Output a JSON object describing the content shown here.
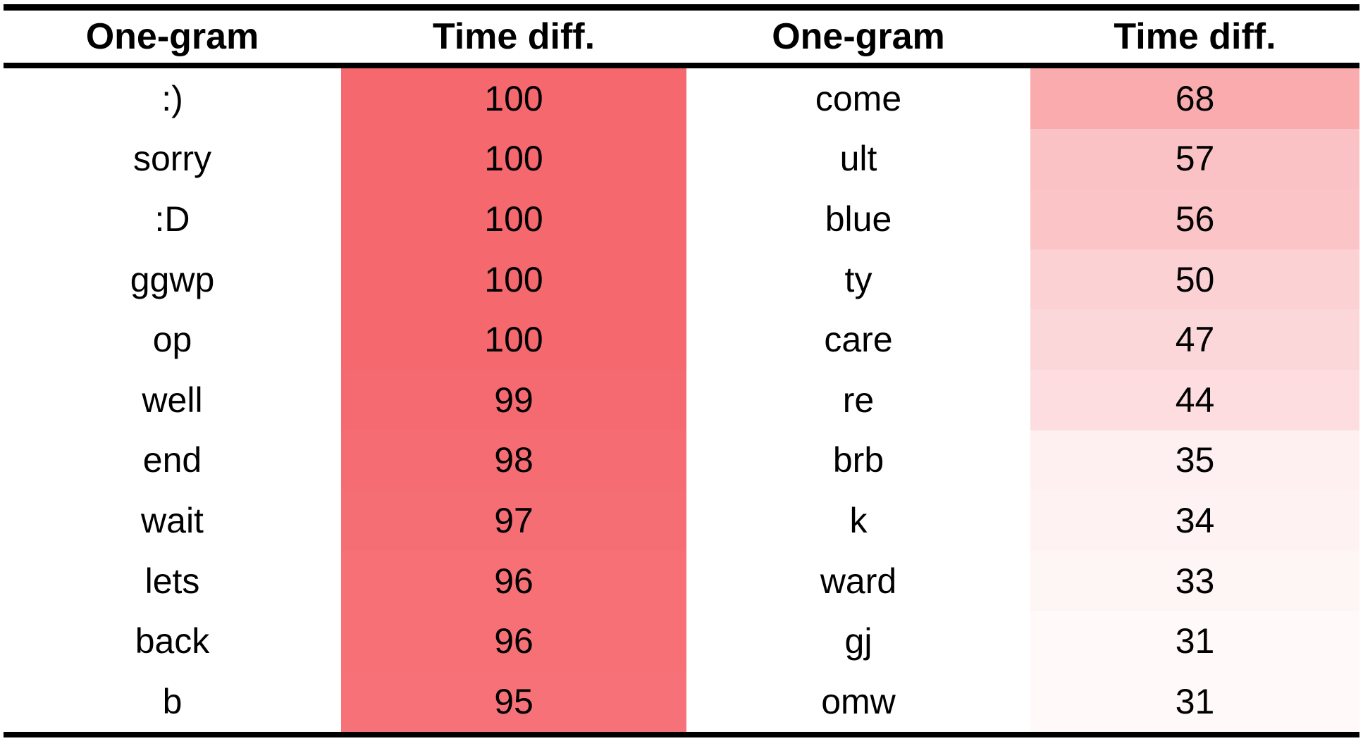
{
  "table": {
    "headers": [
      "One-gram",
      "Time diff.",
      "One-gram",
      "Time diff."
    ],
    "rows": [
      {
        "left_gram": ":)",
        "left_value": 100,
        "right_gram": "come",
        "right_value": 68
      },
      {
        "left_gram": "sorry",
        "left_value": 100,
        "right_gram": "ult",
        "right_value": 57
      },
      {
        "left_gram": ":D",
        "left_value": 100,
        "right_gram": "blue",
        "right_value": 56
      },
      {
        "left_gram": "ggwp",
        "left_value": 100,
        "right_gram": "ty",
        "right_value": 50
      },
      {
        "left_gram": "op",
        "left_value": 100,
        "right_gram": "care",
        "right_value": 47
      },
      {
        "left_gram": "well",
        "left_value": 99,
        "right_gram": "re",
        "right_value": 44
      },
      {
        "left_gram": "end",
        "left_value": 98,
        "right_gram": "brb",
        "right_value": 35
      },
      {
        "left_gram": "wait",
        "left_value": 97,
        "right_gram": "k",
        "right_value": 34
      },
      {
        "left_gram": "lets",
        "left_value": 96,
        "right_gram": "ward",
        "right_value": 33
      },
      {
        "left_gram": "back",
        "left_value": 96,
        "right_gram": "gj",
        "right_value": 31
      },
      {
        "left_gram": "b",
        "left_value": 95,
        "right_gram": "omw",
        "right_value": 31
      }
    ],
    "heatmap": {
      "base_color": "#F5686E",
      "min_value": 28,
      "max_value": 100,
      "scale": "white-to-red"
    }
  },
  "chart_data": {
    "type": "table",
    "columns": [
      "One-gram",
      "Time diff.",
      "One-gram",
      "Time diff."
    ],
    "series": [
      {
        "name": "left-columns",
        "categories": [
          ":)",
          "sorry",
          ":D",
          "ggwp",
          "op",
          "well",
          "end",
          "wait",
          "lets",
          "back",
          "b"
        ],
        "values": [
          100,
          100,
          100,
          100,
          100,
          99,
          98,
          97,
          96,
          96,
          95
        ]
      },
      {
        "name": "right-columns",
        "categories": [
          "come",
          "ult",
          "blue",
          "ty",
          "care",
          "re",
          "brb",
          "k",
          "ward",
          "gj",
          "omw"
        ],
        "values": [
          68,
          57,
          56,
          50,
          47,
          44,
          35,
          34,
          33,
          31,
          31
        ]
      }
    ],
    "layout_hints": {
      "value_cells_heatmap": true,
      "heatmap_base_color": "#F5686E",
      "heatmap_low_color": "#FFFFFF"
    }
  },
  "colors": {
    "border": "#000000",
    "background": "#FFFFFF",
    "text": "#000000",
    "accent_red": "#F5686E"
  }
}
